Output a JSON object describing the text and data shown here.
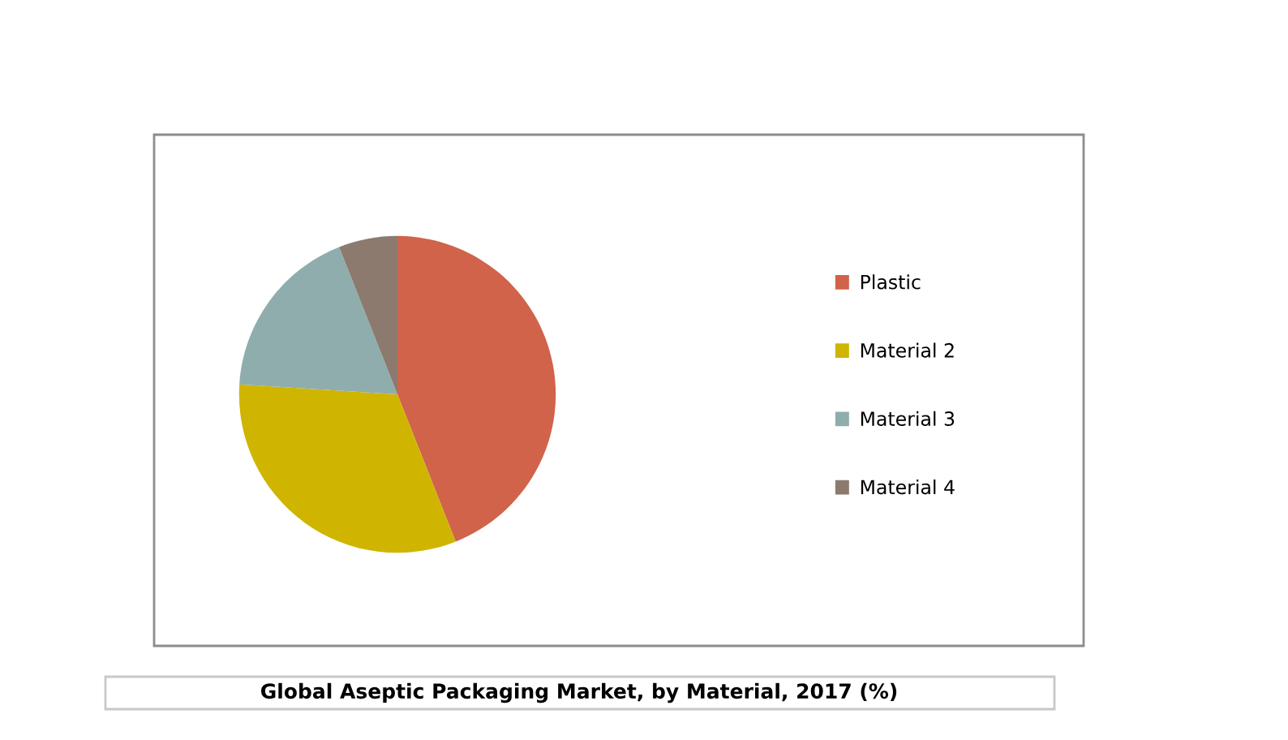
{
  "chart_data": {
    "type": "pie",
    "title": "Global Aseptic Packaging Market, by Material, 2017 (%)",
    "categories": [
      "Plastic",
      "Material 2",
      "Material 3",
      "Material 4"
    ],
    "values": [
      44,
      32,
      18,
      6
    ],
    "colors": [
      "#d0634a",
      "#cfb500",
      "#8fadad",
      "#8c7a6e"
    ],
    "legend": "right"
  }
}
